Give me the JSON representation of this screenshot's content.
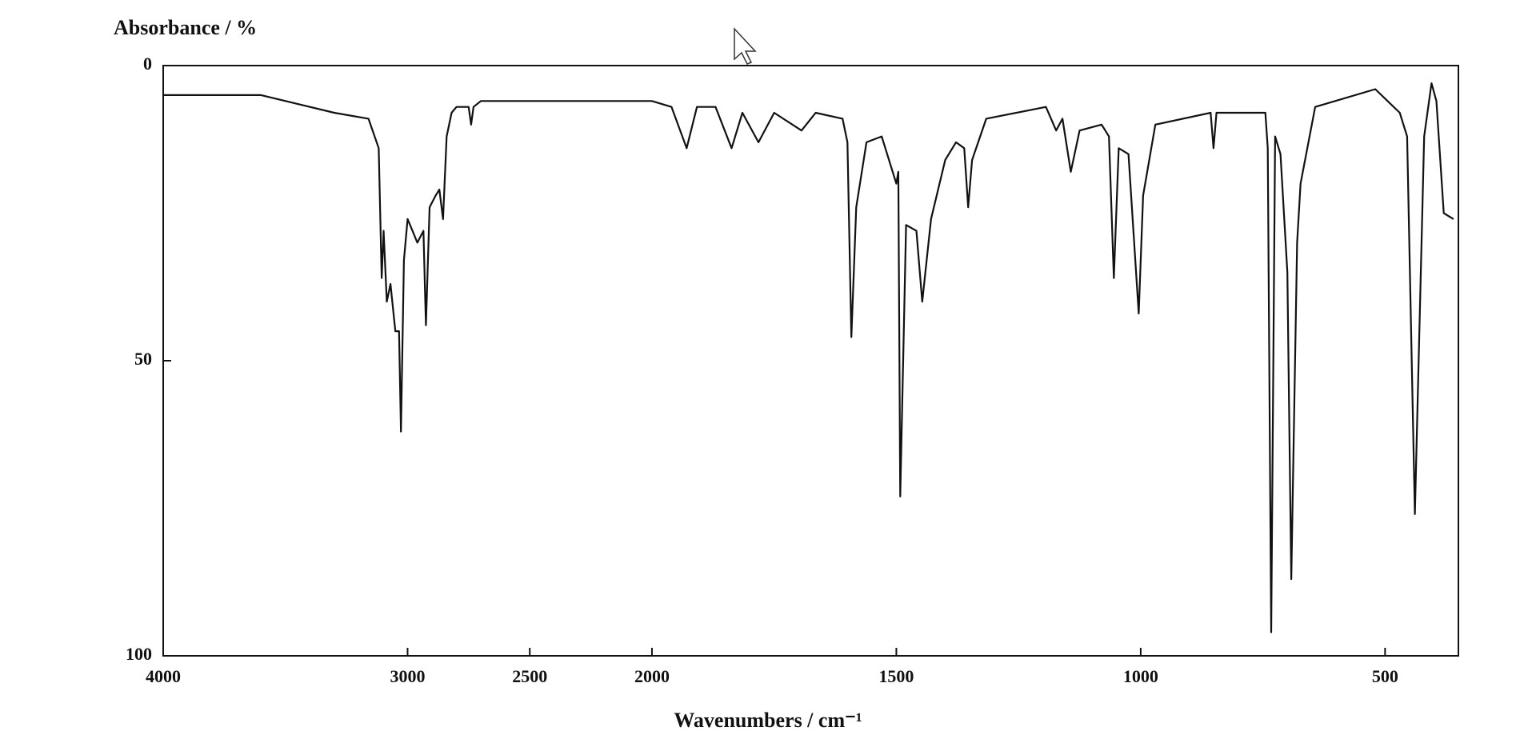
{
  "chart_data": {
    "type": "line",
    "ylabel": "Absorbance / %",
    "xlabel": "Wavenumbers / cm⁻¹",
    "x": [
      4000,
      3600,
      3300,
      3160,
      3118,
      3106,
      3098,
      3085,
      3070,
      3050,
      3035,
      3027,
      3015,
      3000,
      2980,
      2960,
      2935,
      2925,
      2910,
      2885,
      2870,
      2855,
      2840,
      2820,
      2800,
      2750,
      2740,
      2730,
      2700,
      2500,
      2200,
      2000,
      1960,
      1929,
      1908,
      1870,
      1837,
      1815,
      1782,
      1750,
      1694,
      1665,
      1610,
      1600,
      1592,
      1582,
      1561,
      1530,
      1500,
      1496,
      1492,
      1480,
      1459,
      1447,
      1429,
      1400,
      1378,
      1361,
      1353,
      1345,
      1316,
      1194,
      1173,
      1160,
      1143,
      1125,
      1080,
      1065,
      1055,
      1045,
      1025,
      1004,
      995,
      970,
      857,
      851,
      845,
      745,
      740,
      733,
      725,
      714,
      700,
      692,
      680,
      673,
      643,
      602,
      520,
      470,
      455,
      439,
      420,
      405,
      395,
      380,
      360
    ],
    "values": [
      5,
      5,
      8,
      9,
      14,
      36,
      28,
      40,
      37,
      45,
      45,
      62,
      33,
      26,
      28,
      30,
      28,
      44,
      24,
      22,
      21,
      26,
      12,
      8,
      7,
      7,
      10,
      7,
      6,
      6,
      6,
      6,
      7,
      14,
      7,
      7,
      14,
      8,
      13,
      8,
      11,
      8,
      9,
      13,
      46,
      24,
      13,
      12,
      20,
      18,
      73,
      27,
      28,
      40,
      26,
      16,
      13,
      14,
      24,
      16,
      9,
      7,
      11,
      9,
      18,
      11,
      10,
      12,
      36,
      14,
      15,
      42,
      22,
      10,
      8,
      14,
      8,
      8,
      14,
      96,
      12,
      15,
      35,
      87,
      30,
      20,
      7,
      6,
      4,
      8,
      12,
      76,
      12,
      3,
      6,
      25,
      26
    ],
    "color": "#111111",
    "xlim": [
      4000,
      350
    ],
    "xbreak": 2000,
    "xticks": [
      4000,
      3000,
      2500,
      2000,
      1500,
      1000,
      500
    ],
    "ylim": [
      0,
      100
    ],
    "yinverted": true,
    "yticks": [
      0,
      50,
      100
    ]
  }
}
